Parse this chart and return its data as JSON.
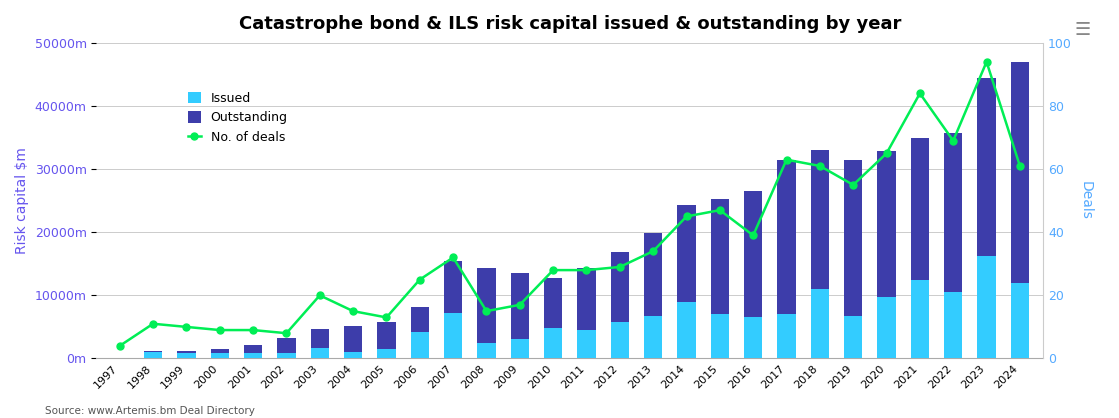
{
  "title": "Catastrophe bond & ILS risk capital issued & outstanding by year",
  "years": [
    1997,
    1998,
    1999,
    2000,
    2001,
    2002,
    2003,
    2004,
    2005,
    2006,
    2007,
    2008,
    2009,
    2010,
    2011,
    2012,
    2013,
    2014,
    2015,
    2016,
    2017,
    2018,
    2019,
    2020,
    2021,
    2022,
    2023,
    2024
  ],
  "issued": [
    100,
    1100,
    900,
    900,
    900,
    900,
    1600,
    1100,
    1500,
    4200,
    7200,
    2500,
    3100,
    4900,
    4500,
    5700,
    6800,
    9000,
    7000,
    6500,
    7000,
    11000,
    6700,
    9700,
    12500,
    10500,
    16200,
    12000
  ],
  "outstanding": [
    100,
    1200,
    1200,
    1500,
    2200,
    3300,
    4600,
    5100,
    5700,
    8200,
    15500,
    14400,
    13500,
    12700,
    14300,
    16800,
    19800,
    24300,
    25200,
    26500,
    31500,
    33000,
    31500,
    32800,
    35000,
    35700,
    44500,
    47000
  ],
  "deals": [
    4,
    11,
    10,
    9,
    9,
    8,
    20,
    15,
    13,
    25,
    32,
    15,
    17,
    28,
    28,
    29,
    34,
    45,
    47,
    39,
    63,
    61,
    55,
    65,
    84,
    69,
    94,
    61
  ],
  "issued_color": "#33CCFF",
  "outstanding_color": "#3D3DAA",
  "deals_color": "#00EE55",
  "ylabel_left": "Risk capital $m",
  "ylabel_right": "Deals",
  "ylim_left": [
    0,
    50000
  ],
  "ylim_right": [
    0,
    100
  ],
  "yticks_left": [
    0,
    10000,
    20000,
    30000,
    40000,
    50000
  ],
  "yticks_right": [
    0,
    20,
    40,
    60,
    80,
    100
  ],
  "source": "Source: www.Artemis.bm Deal Directory",
  "background_color": "#ffffff",
  "left_tick_color": "#6655EE",
  "right_tick_color": "#55AAFF"
}
